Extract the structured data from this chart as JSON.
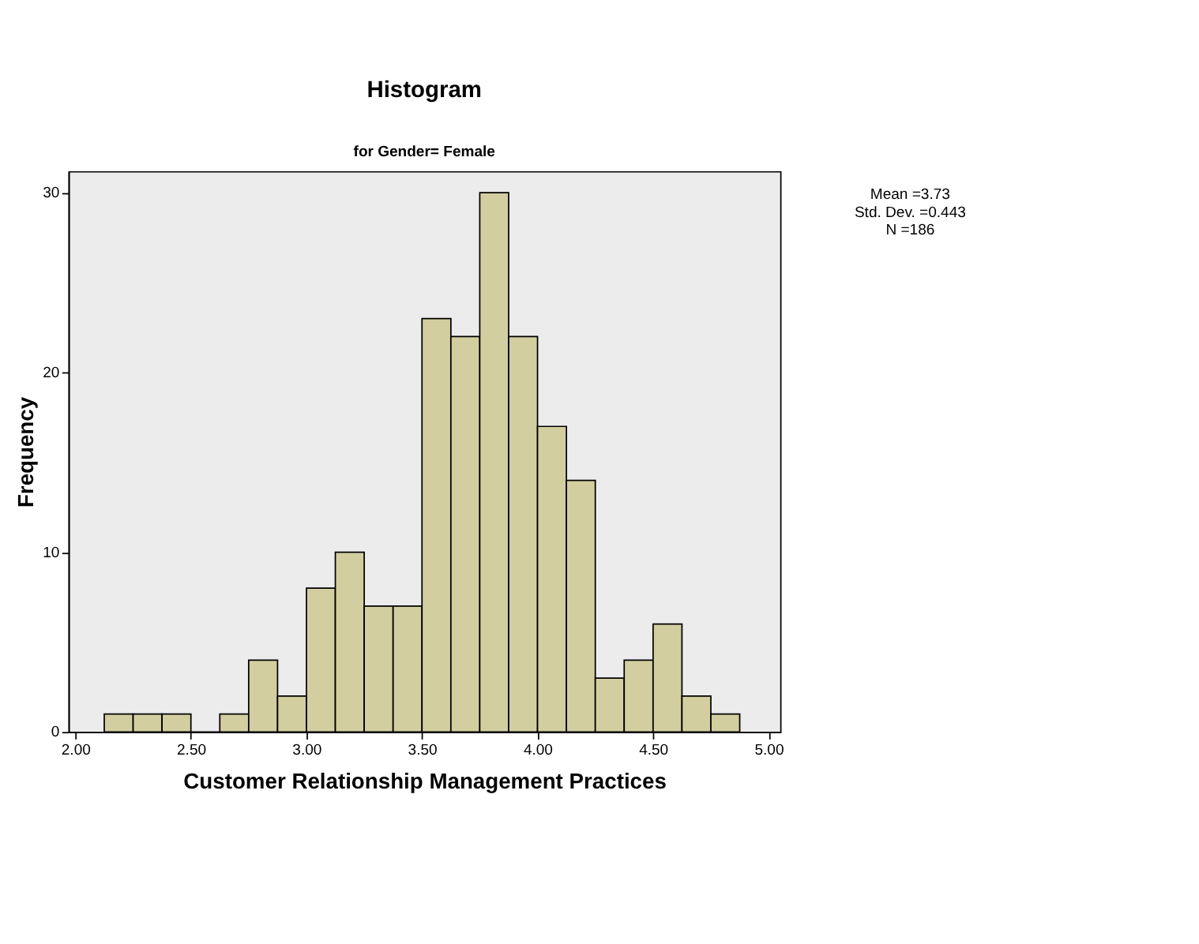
{
  "chart_data": {
    "type": "histogram",
    "title": "Histogram",
    "subtitle": "for Gender= Female",
    "xlabel": "Customer Relationship Management Practices",
    "ylabel": "Frequency",
    "bins": [
      2.125,
      2.25,
      2.375,
      2.5,
      2.625,
      2.75,
      2.875,
      3.0,
      3.125,
      3.25,
      3.375,
      3.5,
      3.625,
      3.75,
      3.875,
      4.0,
      4.125,
      4.25,
      4.375,
      4.5,
      4.625,
      4.75,
      4.875
    ],
    "values": [
      1,
      1,
      1,
      0,
      1,
      4,
      2,
      8,
      10,
      7,
      7,
      23,
      22,
      30,
      22,
      17,
      14,
      3,
      4,
      6,
      2,
      1
    ],
    "color": "#d3cea0",
    "xlim": [
      1.97,
      5.05
    ],
    "ylim": [
      0,
      31.2
    ],
    "xticks": [
      {
        "value": 2.0,
        "label": "2.00"
      },
      {
        "value": 2.5,
        "label": "2.50"
      },
      {
        "value": 3.0,
        "label": "3.00"
      },
      {
        "value": 3.5,
        "label": "3.50"
      },
      {
        "value": 4.0,
        "label": "4.00"
      },
      {
        "value": 4.5,
        "label": "4.50"
      },
      {
        "value": 5.0,
        "label": "5.00"
      }
    ],
    "yticks": [
      0,
      10,
      20,
      30
    ],
    "grid": false,
    "annotations": [
      "Mean =3.73",
      "Std. Dev. =0.443",
      "N =186"
    ]
  }
}
